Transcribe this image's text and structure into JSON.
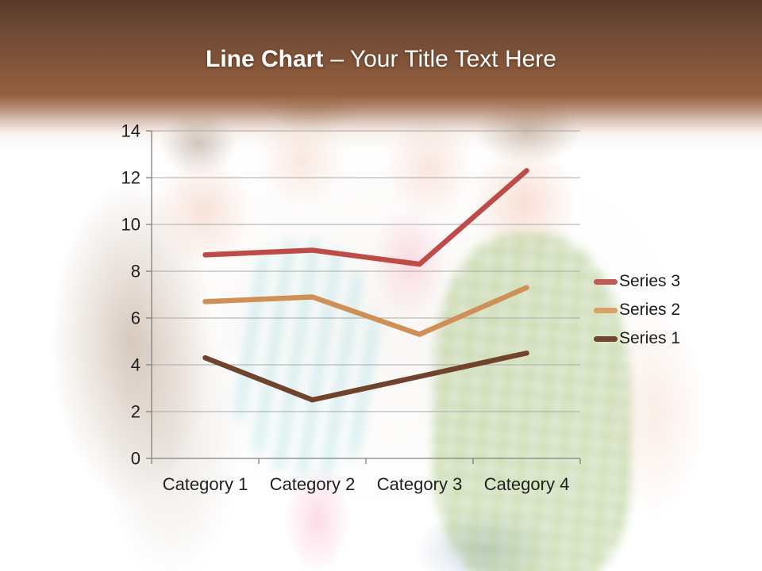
{
  "header": {
    "title_bold": "Line Chart",
    "title_rest": "– Your Title Text Here",
    "band_color_top": "#583A29",
    "band_color_mid": "#96613F",
    "title_color": "#FFFFFF"
  },
  "chart_data": {
    "type": "line",
    "subtype": "stacked",
    "title": "",
    "xlabel": "",
    "ylabel": "",
    "categories": [
      "Category 1",
      "Category 2",
      "Category 3",
      "Category 4"
    ],
    "series": [
      {
        "name": "Series 1",
        "color": "#6F432C",
        "values": [
          4.3,
          2.5,
          3.5,
          4.5
        ]
      },
      {
        "name": "Series 2",
        "color": "#CE9057",
        "values": [
          6.7,
          6.9,
          5.3,
          7.3
        ]
      },
      {
        "name": "Series 3",
        "color": "#BE4B47",
        "values": [
          8.7,
          8.9,
          8.3,
          12.3
        ]
      }
    ],
    "ylim": [
      0,
      14
    ],
    "yticks": [
      0,
      2,
      4,
      6,
      8,
      10,
      12,
      14
    ],
    "grid": true,
    "legend_position": "right",
    "axis_color": "#808080",
    "gridline_color": "#A9A9A9",
    "tick_label_color": "#1F1F1F"
  },
  "legend": {
    "items": [
      {
        "label": "Series 3",
        "color": "#C05B55"
      },
      {
        "label": "Series 2",
        "color": "#D9A06A"
      },
      {
        "label": "Series 1",
        "color": "#714430"
      }
    ]
  }
}
